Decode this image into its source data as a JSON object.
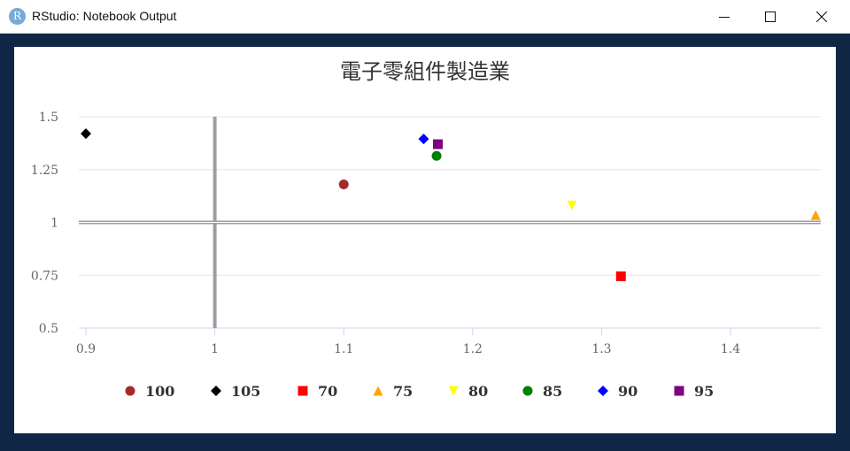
{
  "window": {
    "title": "RStudio: Notebook Output",
    "app_icon_letter": "R",
    "icons": [
      "rstudio-icon",
      "minimize-icon",
      "maximize-icon",
      "close-icon"
    ]
  },
  "colors": {
    "frame": "#0f2744",
    "panel": "#ffffff",
    "grid": "#e6e6e6",
    "refline": "#9e9e9e"
  },
  "chart_data": {
    "type": "scatter",
    "title": "電子零組件製造業",
    "xlabel": "",
    "ylabel": "",
    "xlim": [
      0.9,
      1.47
    ],
    "ylim": [
      0.5,
      1.5
    ],
    "x_ticks": [
      "0.9",
      "1",
      "1.1",
      "1.2",
      "1.3",
      "1.4"
    ],
    "y_ticks": [
      "0.5",
      "0.75",
      "1",
      "1.25",
      "1.5"
    ],
    "grid": true,
    "reference_lines": {
      "x": 1,
      "y": 1
    },
    "legend_position": "bottom",
    "series": [
      {
        "name": "100",
        "symbol": "circle",
        "color": "#a52a2a",
        "x": 1.1,
        "y": 1.18
      },
      {
        "name": "105",
        "symbol": "diamond",
        "color": "#000000",
        "x": 0.9,
        "y": 1.42
      },
      {
        "name": "70",
        "symbol": "square",
        "color": "#ff0000",
        "x": 1.315,
        "y": 0.745
      },
      {
        "name": "75",
        "symbol": "triangle",
        "color": "#ffa500",
        "x": 1.466,
        "y": 1.035
      },
      {
        "name": "80",
        "symbol": "triangle-down",
        "color": "#ffff00",
        "x": 1.277,
        "y": 1.08
      },
      {
        "name": "85",
        "symbol": "circle",
        "color": "#008000",
        "x": 1.172,
        "y": 1.315
      },
      {
        "name": "90",
        "symbol": "diamond",
        "color": "#0000ff",
        "x": 1.162,
        "y": 1.395
      },
      {
        "name": "95",
        "symbol": "square",
        "color": "#800080",
        "x": 1.173,
        "y": 1.37
      }
    ]
  }
}
